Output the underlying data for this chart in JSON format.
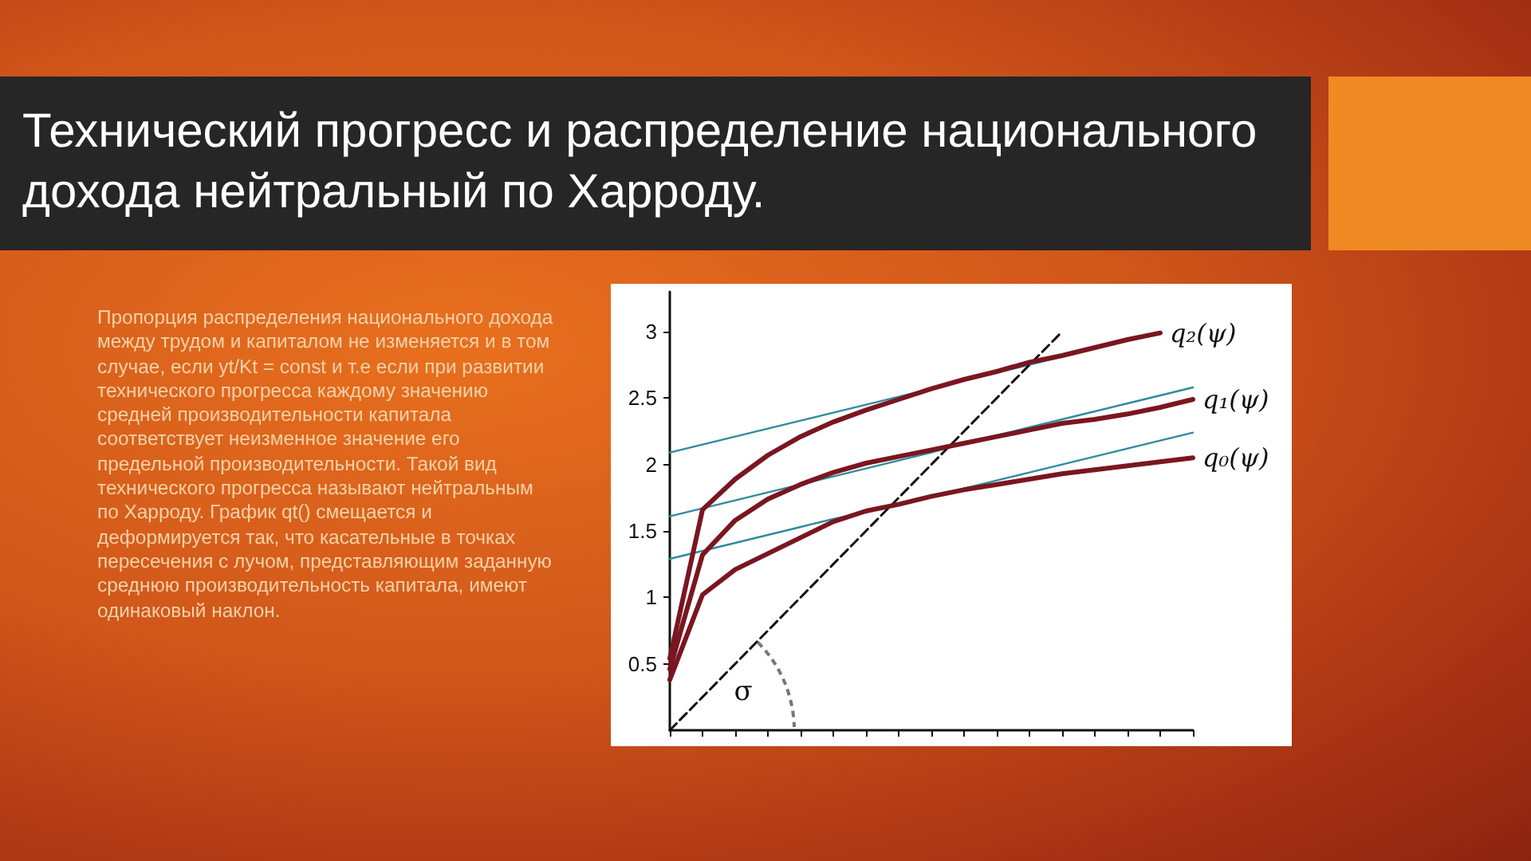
{
  "chart_data": {
    "type": "line",
    "title": "Технический прогресс и распределение национального дохода нейтральный по Харроду.",
    "annotations": [
      "Пропорция распределения национального дохода между трудом и капиталом не изменяется и в том случае, если yt/Kt = const и т.е если при развитии технического прогресса каждому значению средней производительности капитала соответствует неизменное значение его предельной производительности. Такой вид технического прогресса называют нейтральным по Харроду. График qt() смещается и деформируется так, что касательные в точках пересечения с лучом, представляющим заданную среднюю производительность капитала, имеют одинаковый наклон.",
      "σ"
    ],
    "categories": [
      null,
      null,
      null,
      null,
      null,
      null,
      null,
      null,
      null,
      null,
      null,
      null,
      null,
      null,
      null,
      null,
      null
    ],
    "series": [
      {
        "name": "q₂(ψ)",
        "color": "#7a1620",
        "values": [
          0.54,
          1.66,
          1.89,
          2.07,
          2.21,
          2.32,
          2.41,
          2.49,
          2.57,
          2.64,
          2.7,
          2.77,
          2.82,
          2.88,
          2.94,
          2.99,
          null
        ]
      },
      {
        "name": "q₁(ψ)",
        "color": "#7a1620",
        "values": [
          0.46,
          1.32,
          1.58,
          1.74,
          1.85,
          1.94,
          2.01,
          2.06,
          2.11,
          2.16,
          2.21,
          2.26,
          2.31,
          2.34,
          2.38,
          2.43,
          2.49
        ]
      },
      {
        "name": "q₀(ψ)",
        "color": "#7a1620",
        "values": [
          0.38,
          1.02,
          1.21,
          1.33,
          1.45,
          1.57,
          1.65,
          1.7,
          1.76,
          1.81,
          1.85,
          1.89,
          1.93,
          1.96,
          1.99,
          2.02,
          2.05
        ]
      },
      {
        "color": "#2f8c9c",
        "values": [
          1.29,
          1.35,
          1.41,
          1.47,
          1.53,
          1.59,
          1.64,
          1.7,
          1.76,
          1.82,
          1.88,
          1.94,
          2.0,
          2.06,
          2.12,
          2.18,
          2.24
        ]
      },
      {
        "color": "#2f8c9c",
        "values": [
          1.61,
          1.67,
          1.73,
          1.79,
          1.85,
          1.91,
          1.97,
          2.03,
          2.09,
          2.16,
          2.22,
          2.28,
          2.34,
          2.4,
          2.46,
          2.52,
          2.58
        ]
      },
      {
        "color": "#2f8c9c",
        "values": [
          2.09,
          2.15,
          2.21,
          2.27,
          2.33,
          2.39,
          2.45,
          2.51,
          2.57,
          2.63,
          2.69,
          2.75,
          2.81,
          2.87,
          null,
          null,
          null
        ]
      },
      {
        "color": "#111111",
        "line_style": "dashed",
        "values": [
          0,
          0.25,
          0.5,
          0.75,
          1.0,
          1.25,
          1.5,
          1.75,
          2.0,
          2.25,
          2.5,
          2.75,
          3.0,
          null,
          null,
          null,
          null
        ]
      }
    ],
    "ylim": [
      0,
      3.3
    ],
    "yticks": [
      0.5,
      1,
      1.5,
      2,
      2.5,
      3
    ],
    "tick_labels": "y",
    "grid": false,
    "legend": false,
    "marker": "none",
    "line_style": "solid"
  }
}
